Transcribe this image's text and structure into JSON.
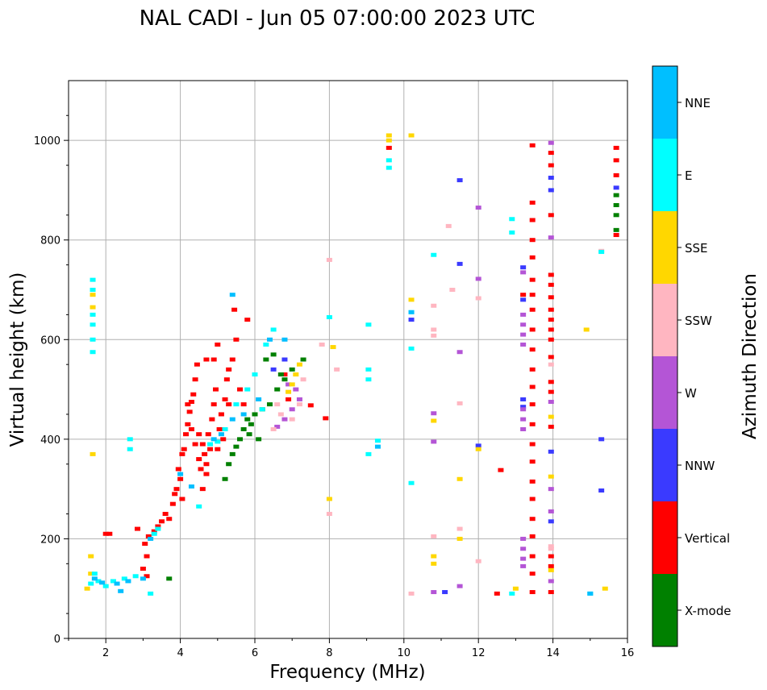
{
  "chart_data": {
    "type": "scatter",
    "title": "NAL CADI - Jun 05 07:00:00 2023 UTC",
    "xlabel": "Frequency (MHz)",
    "ylabel": "Virtual height (km)",
    "xlim": [
      1,
      16
    ],
    "ylim": [
      0,
      1120
    ],
    "xticks": [
      2,
      4,
      6,
      8,
      10,
      12,
      14,
      16
    ],
    "yticks": [
      0,
      200,
      400,
      600,
      800,
      1000
    ],
    "grid": true,
    "colorbar": {
      "label": "Azimuth Direction",
      "categories": [
        {
          "name": "X-mode",
          "color": "#008000"
        },
        {
          "name": "Vertical",
          "color": "#ff0000"
        },
        {
          "name": "NNW",
          "color": "#3a3aff"
        },
        {
          "name": "W",
          "color": "#b455d6"
        },
        {
          "name": "SSW",
          "color": "#ffb6c1"
        },
        {
          "name": "SSE",
          "color": "#ffd700"
        },
        {
          "name": "E",
          "color": "#00ffff"
        },
        {
          "name": "NNE",
          "color": "#00bfff"
        }
      ]
    },
    "series": [
      {
        "name": "Vertical",
        "color": "#ff0000",
        "points": [
          [
            2.0,
            210
          ],
          [
            2.1,
            210
          ],
          [
            2.85,
            220
          ],
          [
            3.05,
            190
          ],
          [
            3.1,
            165
          ],
          [
            3.0,
            140
          ],
          [
            3.1,
            125
          ],
          [
            3.15,
            205
          ],
          [
            3.3,
            215
          ],
          [
            3.4,
            225
          ],
          [
            3.5,
            235
          ],
          [
            3.6,
            250
          ],
          [
            3.7,
            240
          ],
          [
            3.8,
            270
          ],
          [
            3.85,
            290
          ],
          [
            3.9,
            300
          ],
          [
            4.0,
            320
          ],
          [
            4.05,
            370
          ],
          [
            4.1,
            380
          ],
          [
            4.15,
            410
          ],
          [
            4.2,
            430
          ],
          [
            4.25,
            455
          ],
          [
            4.3,
            475
          ],
          [
            4.35,
            490
          ],
          [
            4.4,
            520
          ],
          [
            4.45,
            550
          ],
          [
            4.5,
            360
          ],
          [
            4.55,
            340
          ],
          [
            4.6,
            390
          ],
          [
            4.65,
            370
          ],
          [
            4.7,
            350
          ],
          [
            4.75,
            410
          ],
          [
            4.8,
            380
          ],
          [
            4.85,
            440
          ],
          [
            4.9,
            470
          ],
          [
            4.95,
            500
          ],
          [
            5.0,
            380
          ],
          [
            5.05,
            420
          ],
          [
            5.1,
            450
          ],
          [
            5.15,
            400
          ],
          [
            5.2,
            480
          ],
          [
            5.25,
            520
          ],
          [
            5.3,
            540
          ],
          [
            5.4,
            560
          ],
          [
            5.5,
            600
          ],
          [
            5.45,
            660
          ],
          [
            5.8,
            640
          ],
          [
            5.6,
            500
          ],
          [
            5.7,
            470
          ],
          [
            4.2,
            470
          ],
          [
            4.3,
            420
          ],
          [
            4.4,
            390
          ],
          [
            4.5,
            410
          ],
          [
            4.7,
            330
          ],
          [
            4.6,
            300
          ],
          [
            3.95,
            340
          ],
          [
            4.05,
            280
          ],
          [
            4.7,
            560
          ],
          [
            4.9,
            560
          ],
          [
            5.0,
            590
          ],
          [
            5.3,
            470
          ],
          [
            7.9,
            442
          ],
          [
            7.5,
            468
          ],
          [
            6.8,
            530
          ],
          [
            6.9,
            480
          ],
          [
            12.5,
            90
          ],
          [
            12.6,
            338
          ],
          [
            13.45,
            990
          ],
          [
            13.45,
            875
          ],
          [
            13.45,
            840
          ],
          [
            13.45,
            800
          ],
          [
            13.45,
            765
          ],
          [
            13.45,
            720
          ],
          [
            13.45,
            690
          ],
          [
            13.45,
            660
          ],
          [
            13.45,
            620
          ],
          [
            13.45,
            580
          ],
          [
            13.45,
            540
          ],
          [
            13.45,
            505
          ],
          [
            13.45,
            470
          ],
          [
            13.45,
            430
          ],
          [
            13.45,
            390
          ],
          [
            13.45,
            355
          ],
          [
            13.45,
            315
          ],
          [
            13.45,
            280
          ],
          [
            13.45,
            240
          ],
          [
            13.45,
            205
          ],
          [
            13.45,
            165
          ],
          [
            13.45,
            130
          ],
          [
            13.45,
            93
          ],
          [
            13.2,
            690
          ],
          [
            13.95,
            975
          ],
          [
            13.95,
            950
          ],
          [
            13.95,
            850
          ],
          [
            13.95,
            730
          ],
          [
            13.95,
            710
          ],
          [
            13.95,
            685
          ],
          [
            13.95,
            660
          ],
          [
            13.95,
            640
          ],
          [
            13.95,
            620
          ],
          [
            13.95,
            600
          ],
          [
            13.95,
            565
          ],
          [
            13.95,
            515
          ],
          [
            13.95,
            495
          ],
          [
            13.95,
            425
          ],
          [
            13.95,
            165
          ],
          [
            13.95,
            145
          ],
          [
            13.95,
            93
          ],
          [
            9.6,
            985
          ],
          [
            15.7,
            985
          ],
          [
            15.7,
            960
          ],
          [
            15.7,
            930
          ],
          [
            15.7,
            810
          ]
        ]
      },
      {
        "name": "X-mode",
        "color": "#008000",
        "points": [
          [
            3.7,
            120
          ],
          [
            5.2,
            320
          ],
          [
            5.3,
            350
          ],
          [
            5.5,
            385
          ],
          [
            5.6,
            400
          ],
          [
            5.7,
            420
          ],
          [
            5.8,
            440
          ],
          [
            5.9,
            430
          ],
          [
            6.0,
            450
          ],
          [
            6.2,
            460
          ],
          [
            6.4,
            470
          ],
          [
            6.6,
            500
          ],
          [
            6.8,
            520
          ],
          [
            7.0,
            540
          ],
          [
            6.5,
            570
          ],
          [
            6.7,
            530
          ],
          [
            6.1,
            400
          ],
          [
            5.85,
            410
          ],
          [
            5.4,
            370
          ],
          [
            6.3,
            560
          ],
          [
            7.3,
            560
          ],
          [
            15.7,
            850
          ],
          [
            15.7,
            870
          ],
          [
            15.7,
            890
          ],
          [
            15.7,
            820
          ]
        ]
      },
      {
        "name": "NNW",
        "color": "#3a3aff",
        "points": [
          [
            13.2,
            480
          ],
          [
            13.2,
            465
          ],
          [
            13.2,
            745
          ],
          [
            13.2,
            680
          ],
          [
            13.95,
            925
          ],
          [
            13.95,
            375
          ],
          [
            13.95,
            235
          ],
          [
            11.5,
            920
          ],
          [
            11.5,
            752
          ],
          [
            11.1,
            93
          ],
          [
            15.3,
            400
          ],
          [
            15.3,
            297
          ],
          [
            12.0,
            387
          ],
          [
            6.5,
            540
          ],
          [
            6.8,
            560
          ],
          [
            10.2,
            640
          ],
          [
            13.95,
            900
          ],
          [
            15.7,
            905
          ]
        ]
      },
      {
        "name": "W",
        "color": "#b455d6",
        "points": [
          [
            13.2,
            460
          ],
          [
            13.2,
            440
          ],
          [
            13.2,
            420
          ],
          [
            13.2,
            590
          ],
          [
            13.2,
            610
          ],
          [
            13.2,
            630
          ],
          [
            13.2,
            650
          ],
          [
            13.2,
            200
          ],
          [
            13.2,
            180
          ],
          [
            13.2,
            160
          ],
          [
            13.2,
            145
          ],
          [
            13.2,
            735
          ],
          [
            10.8,
            452
          ],
          [
            10.8,
            395
          ],
          [
            10.8,
            93
          ],
          [
            12.0,
            865
          ],
          [
            12.0,
            722
          ],
          [
            11.5,
            575
          ],
          [
            11.5,
            105
          ],
          [
            13.95,
            475
          ],
          [
            13.95,
            300
          ],
          [
            13.95,
            255
          ],
          [
            13.95,
            115
          ],
          [
            13.95,
            995
          ],
          [
            13.95,
            805
          ],
          [
            7.0,
            460
          ],
          [
            7.2,
            480
          ],
          [
            6.8,
            440
          ],
          [
            6.6,
            425
          ],
          [
            7.1,
            500
          ],
          [
            6.9,
            510
          ]
        ]
      },
      {
        "name": "SSW",
        "color": "#ffb6c1",
        "points": [
          [
            8.0,
            760
          ],
          [
            8.0,
            250
          ],
          [
            10.2,
            90
          ],
          [
            10.8,
            205
          ],
          [
            10.8,
            668
          ],
          [
            10.8,
            620
          ],
          [
            10.8,
            608
          ],
          [
            11.2,
            828
          ],
          [
            11.3,
            700
          ],
          [
            12.0,
            155
          ],
          [
            12.0,
            683
          ],
          [
            11.5,
            220
          ],
          [
            11.5,
            472
          ],
          [
            6.5,
            420
          ],
          [
            6.7,
            450
          ],
          [
            7.0,
            440
          ],
          [
            7.2,
            470
          ],
          [
            7.3,
            520
          ],
          [
            6.6,
            470
          ],
          [
            13.95,
            185
          ],
          [
            13.95,
            550
          ],
          [
            13.95,
            180
          ],
          [
            15.3,
            778
          ],
          [
            8.2,
            540
          ],
          [
            7.8,
            590
          ]
        ]
      },
      {
        "name": "SSE",
        "color": "#ffd700",
        "points": [
          [
            1.5,
            100
          ],
          [
            1.6,
            130
          ],
          [
            1.6,
            165
          ],
          [
            1.65,
            370
          ],
          [
            1.65,
            690
          ],
          [
            1.65,
            665
          ],
          [
            9.6,
            1010
          ],
          [
            9.6,
            1000
          ],
          [
            10.2,
            1010
          ],
          [
            10.2,
            680
          ],
          [
            10.8,
            165
          ],
          [
            10.8,
            150
          ],
          [
            10.8,
            437
          ],
          [
            11.5,
            320
          ],
          [
            11.5,
            200
          ],
          [
            12.0,
            380
          ],
          [
            13.0,
            100
          ],
          [
            13.95,
            445
          ],
          [
            13.95,
            325
          ],
          [
            13.95,
            137
          ],
          [
            14.9,
            620
          ],
          [
            15.4,
            100
          ],
          [
            7.2,
            550
          ],
          [
            7.0,
            510
          ],
          [
            6.9,
            495
          ],
          [
            7.1,
            530
          ],
          [
            8.0,
            280
          ],
          [
            8.1,
            585
          ]
        ]
      },
      {
        "name": "E",
        "color": "#00ffff",
        "points": [
          [
            1.65,
            720
          ],
          [
            1.65,
            700
          ],
          [
            1.65,
            650
          ],
          [
            1.65,
            630
          ],
          [
            1.65,
            600
          ],
          [
            1.65,
            575
          ],
          [
            1.7,
            130
          ],
          [
            1.6,
            110
          ],
          [
            1.8,
            115
          ],
          [
            2.0,
            105
          ],
          [
            2.2,
            115
          ],
          [
            2.5,
            120
          ],
          [
            2.8,
            125
          ],
          [
            3.3,
            210
          ],
          [
            3.4,
            220
          ],
          [
            4.8,
            390
          ],
          [
            5.0,
            395
          ],
          [
            5.2,
            420
          ],
          [
            5.5,
            470
          ],
          [
            5.8,
            500
          ],
          [
            6.0,
            530
          ],
          [
            6.3,
            590
          ],
          [
            6.5,
            620
          ],
          [
            6.2,
            460
          ],
          [
            4.5,
            265
          ],
          [
            3.2,
            90
          ],
          [
            2.65,
            400
          ],
          [
            2.65,
            380
          ],
          [
            9.6,
            960
          ],
          [
            9.6,
            945
          ],
          [
            9.05,
            630
          ],
          [
            9.05,
            540
          ],
          [
            9.05,
            520
          ],
          [
            9.05,
            370
          ],
          [
            9.3,
            397
          ],
          [
            10.2,
            655
          ],
          [
            10.2,
            582
          ],
          [
            10.2,
            312
          ],
          [
            10.8,
            770
          ],
          [
            12.9,
            842
          ],
          [
            12.9,
            815
          ],
          [
            12.9,
            90
          ],
          [
            15.0,
            90
          ],
          [
            15.3,
            776
          ],
          [
            8.0,
            645
          ]
        ]
      },
      {
        "name": "NNE",
        "color": "#00bfff",
        "points": [
          [
            1.9,
            112
          ],
          [
            2.3,
            110
          ],
          [
            2.6,
            115
          ],
          [
            3.0,
            120
          ],
          [
            3.2,
            200
          ],
          [
            4.0,
            330
          ],
          [
            4.9,
            400
          ],
          [
            5.1,
            410
          ],
          [
            5.4,
            440
          ],
          [
            5.7,
            450
          ],
          [
            6.1,
            480
          ],
          [
            6.4,
            600
          ],
          [
            6.8,
            600
          ],
          [
            5.4,
            690
          ],
          [
            4.3,
            305
          ],
          [
            2.4,
            95
          ],
          [
            9.3,
            385
          ],
          [
            10.2,
            655
          ],
          [
            15.0,
            90
          ],
          [
            1.7,
            120
          ]
        ]
      }
    ]
  }
}
